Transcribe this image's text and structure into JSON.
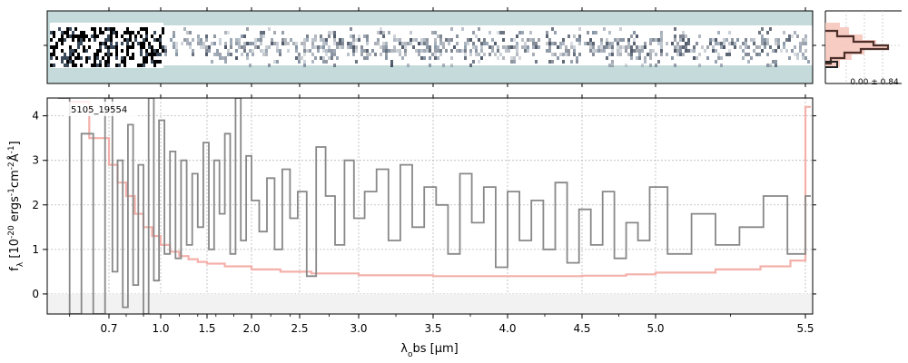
{
  "chart_data": {
    "type": "line",
    "title": "",
    "object_label": "5105_19554",
    "xlabel": "λ_obs [μm]",
    "ylabel": "f_λ [10^-20 ergs^-1cm^-2Å^-1]",
    "x_scale": "nonlinear (resolution-sampled, prism)",
    "xlim": [
      0.55,
      5.53
    ],
    "ylim": [
      -0.45,
      4.4
    ],
    "x_ticks": [
      0.7,
      1.0,
      1.5,
      2.0,
      2.5,
      3.0,
      3.5,
      4.0,
      4.5,
      5.0,
      5.5
    ],
    "x_tick_labels": [
      "0.7",
      "1.0",
      "1.5",
      "2.0",
      "2.5",
      "3.0",
      "3.5",
      "4.0",
      "4.5",
      "5.0",
      "5.5"
    ],
    "y_ticks": [
      0,
      1,
      2,
      3,
      4
    ],
    "y_tick_labels": [
      "0",
      "1",
      "2",
      "3",
      "4"
    ],
    "grid": true,
    "series": [
      {
        "name": "",
        "style": "steps",
        "color": "#888888",
        "x": [
          0.57,
          0.6,
          0.63,
          0.66,
          0.69,
          0.72,
          0.75,
          0.78,
          0.81,
          0.84,
          0.87,
          0.9,
          0.93,
          0.96,
          0.99,
          1.04,
          1.1,
          1.16,
          1.22,
          1.28,
          1.34,
          1.4,
          1.46,
          1.52,
          1.58,
          1.64,
          1.7,
          1.76,
          1.82,
          1.88,
          1.94,
          2.0,
          2.08,
          2.16,
          2.24,
          2.32,
          2.4,
          2.48,
          2.56,
          2.64,
          2.72,
          2.8,
          2.88,
          2.96,
          3.04,
          3.12,
          3.2,
          3.28,
          3.36,
          3.44,
          3.52,
          3.6,
          3.68,
          3.76,
          3.84,
          3.92,
          4.0,
          4.08,
          4.16,
          4.24,
          4.32,
          4.4,
          4.48,
          4.56,
          4.64,
          4.72,
          4.8,
          4.88,
          4.96,
          5.04,
          5.12,
          5.2,
          5.28,
          5.36,
          5.44,
          5.5
        ],
        "y": [
          4.4,
          -0.45,
          3.6,
          -0.45,
          4.4,
          0.5,
          3.0,
          -0.3,
          3.8,
          0.2,
          2.9,
          -0.45,
          4.4,
          0.3,
          3.9,
          0.9,
          3.2,
          0.8,
          3.0,
          1.1,
          2.7,
          1.5,
          3.4,
          1.0,
          3.0,
          1.8,
          3.6,
          0.9,
          4.4,
          1.2,
          3.1,
          2.1,
          1.4,
          2.6,
          1.0,
          2.8,
          1.7,
          2.3,
          0.4,
          3.3,
          2.2,
          1.1,
          3.0,
          1.7,
          2.3,
          2.8,
          1.2,
          2.9,
          1.5,
          2.4,
          2.0,
          0.9,
          2.7,
          1.6,
          2.4,
          0.6,
          2.3,
          1.2,
          2.1,
          1.0,
          2.5,
          0.7,
          1.9,
          1.1,
          2.3,
          0.8,
          1.6,
          1.2,
          2.4,
          0.9,
          1.8,
          1.1,
          1.5,
          2.2,
          0.9,
          2.2
        ]
      },
      {
        "name": "",
        "style": "uncertainty",
        "color": "#f4b0aa",
        "x": [
          0.6,
          0.65,
          0.7,
          0.75,
          0.8,
          0.85,
          0.9,
          0.95,
          1.0,
          1.1,
          1.2,
          1.3,
          1.4,
          1.5,
          1.7,
          2.0,
          2.3,
          2.6,
          3.0,
          3.5,
          4.0,
          4.5,
          4.8,
          5.0,
          5.2,
          5.35,
          5.45,
          5.5
        ],
        "y": [
          4.3,
          3.5,
          2.9,
          2.5,
          2.2,
          1.8,
          1.5,
          1.3,
          1.1,
          0.95,
          0.85,
          0.78,
          0.72,
          0.68,
          0.62,
          0.55,
          0.5,
          0.46,
          0.42,
          0.4,
          0.4,
          0.41,
          0.44,
          0.48,
          0.55,
          0.62,
          0.75,
          4.2
        ]
      }
    ]
  },
  "spectrum_2d": {
    "color_scheme": "grayscale on light teal background",
    "background_color": "#c5dada"
  },
  "side_panel": {
    "label": "0.00 ± 0.84",
    "colors": {
      "profile": "#4d2f2a",
      "fill": "#f6c7bd",
      "dark": "#222222"
    }
  }
}
